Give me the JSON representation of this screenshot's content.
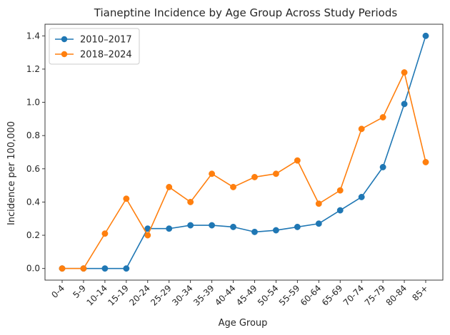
{
  "chart_data": {
    "type": "line",
    "title": "Tianeptine Incidence by Age Group Across Study Periods",
    "xlabel": "Age Group",
    "ylabel": "Incidence per 100,000",
    "categories": [
      "0-4",
      "5-9",
      "10-14",
      "15-19",
      "20-24",
      "25-29",
      "30-34",
      "35-39",
      "40-44",
      "45-49",
      "50-54",
      "55-59",
      "60-64",
      "65-69",
      "70-74",
      "75-79",
      "80-84",
      "85+"
    ],
    "ylim": [
      -0.07,
      1.47
    ],
    "yticks": [
      0.0,
      0.2,
      0.4,
      0.6,
      0.8,
      1.0,
      1.2,
      1.4
    ],
    "ytick_labels": [
      "0.0",
      "0.2",
      "0.4",
      "0.6",
      "0.8",
      "1.0",
      "1.2",
      "1.4"
    ],
    "grid": false,
    "legend_position": "top-left",
    "series": [
      {
        "name": "2010–2017",
        "color": "#1f77b4",
        "marker": "circle",
        "values": [
          0.0,
          0.0,
          0.0,
          0.0,
          0.24,
          0.24,
          0.26,
          0.26,
          0.25,
          0.22,
          0.23,
          0.25,
          0.27,
          0.35,
          0.43,
          0.61,
          0.99,
          1.4
        ]
      },
      {
        "name": "2018–2024",
        "color": "#ff7f0e",
        "marker": "circle",
        "values": [
          0.0,
          0.0,
          0.21,
          0.42,
          0.2,
          0.49,
          0.4,
          0.57,
          0.49,
          0.55,
          0.57,
          0.65,
          0.39,
          0.47,
          0.84,
          0.91,
          1.18,
          0.64
        ]
      }
    ]
  }
}
